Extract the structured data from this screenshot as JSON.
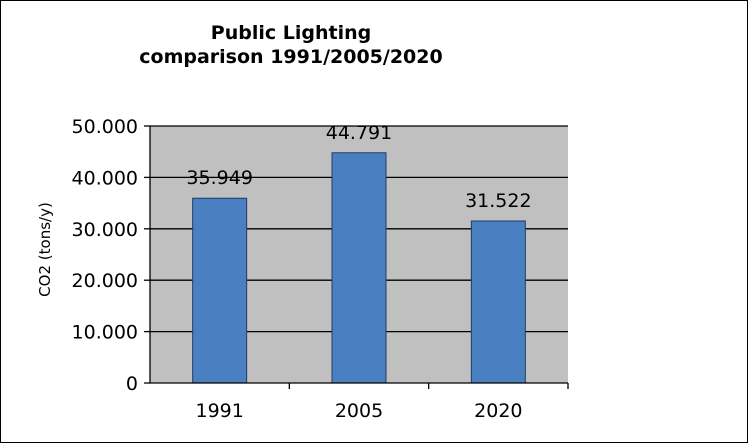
{
  "chart_data": {
    "type": "bar",
    "title_lines": [
      "Public Lighting",
      "comparison  1991/2005/2020"
    ],
    "xlabel": "",
    "ylabel": "CO2 (tons/y)",
    "categories": [
      "1991",
      "2005",
      "2020"
    ],
    "values": [
      35949,
      44791,
      31522
    ],
    "value_labels": [
      "35.949",
      "44.791",
      "31.522"
    ],
    "ylim": [
      0,
      50000
    ],
    "y_ticks": [
      0,
      10000,
      20000,
      30000,
      40000,
      50000
    ],
    "y_tick_labels": [
      "0",
      "10.000",
      "20.000",
      "30.000",
      "40.000",
      "50.000"
    ],
    "grid": true,
    "legend": "none",
    "colors": {
      "bar_fill": "#4a7fc1",
      "bar_stroke": "#1f3c66",
      "plot_background": "#c0c0c0",
      "gridline": "#000000"
    }
  }
}
